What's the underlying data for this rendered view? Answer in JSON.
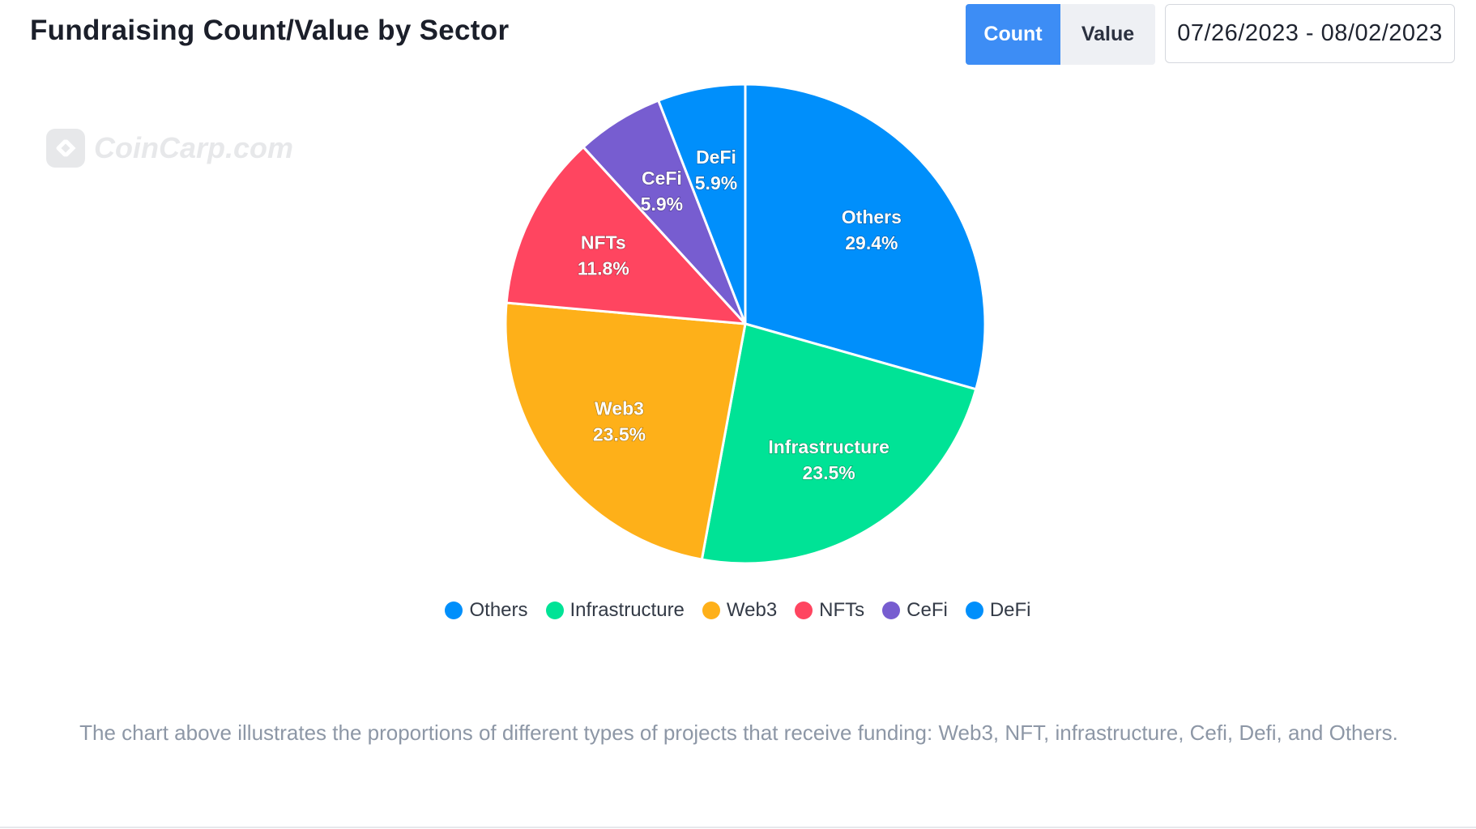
{
  "header": {
    "title": "Fundraising Count/Value by Sector",
    "toggle": {
      "count_label": "Count",
      "value_label": "Value",
      "active": "Count"
    },
    "date_range": "07/26/2023 - 08/02/2023"
  },
  "watermark": {
    "text": "CoinCarp.com"
  },
  "chart_data": {
    "type": "pie",
    "title": "",
    "categories": [
      "Others",
      "Infrastructure",
      "Web3",
      "NFTs",
      "CeFi",
      "DeFi"
    ],
    "values": [
      29.4,
      23.5,
      23.5,
      11.8,
      5.9,
      5.9
    ],
    "labels": [
      "29.4%",
      "23.5%",
      "23.5%",
      "11.8%",
      "5.9%",
      "5.9%"
    ],
    "colors": [
      "#008ffb",
      "#00e396",
      "#feb019",
      "#ff4560",
      "#775dd0",
      "#008ffb"
    ],
    "legend_position": "bottom",
    "start": "12 o'clock, clockwise"
  },
  "caption": "The chart above illustrates the proportions of different types of projects that receive funding: Web3, NFT, infrastructure, Cefi, Defi, and Others."
}
